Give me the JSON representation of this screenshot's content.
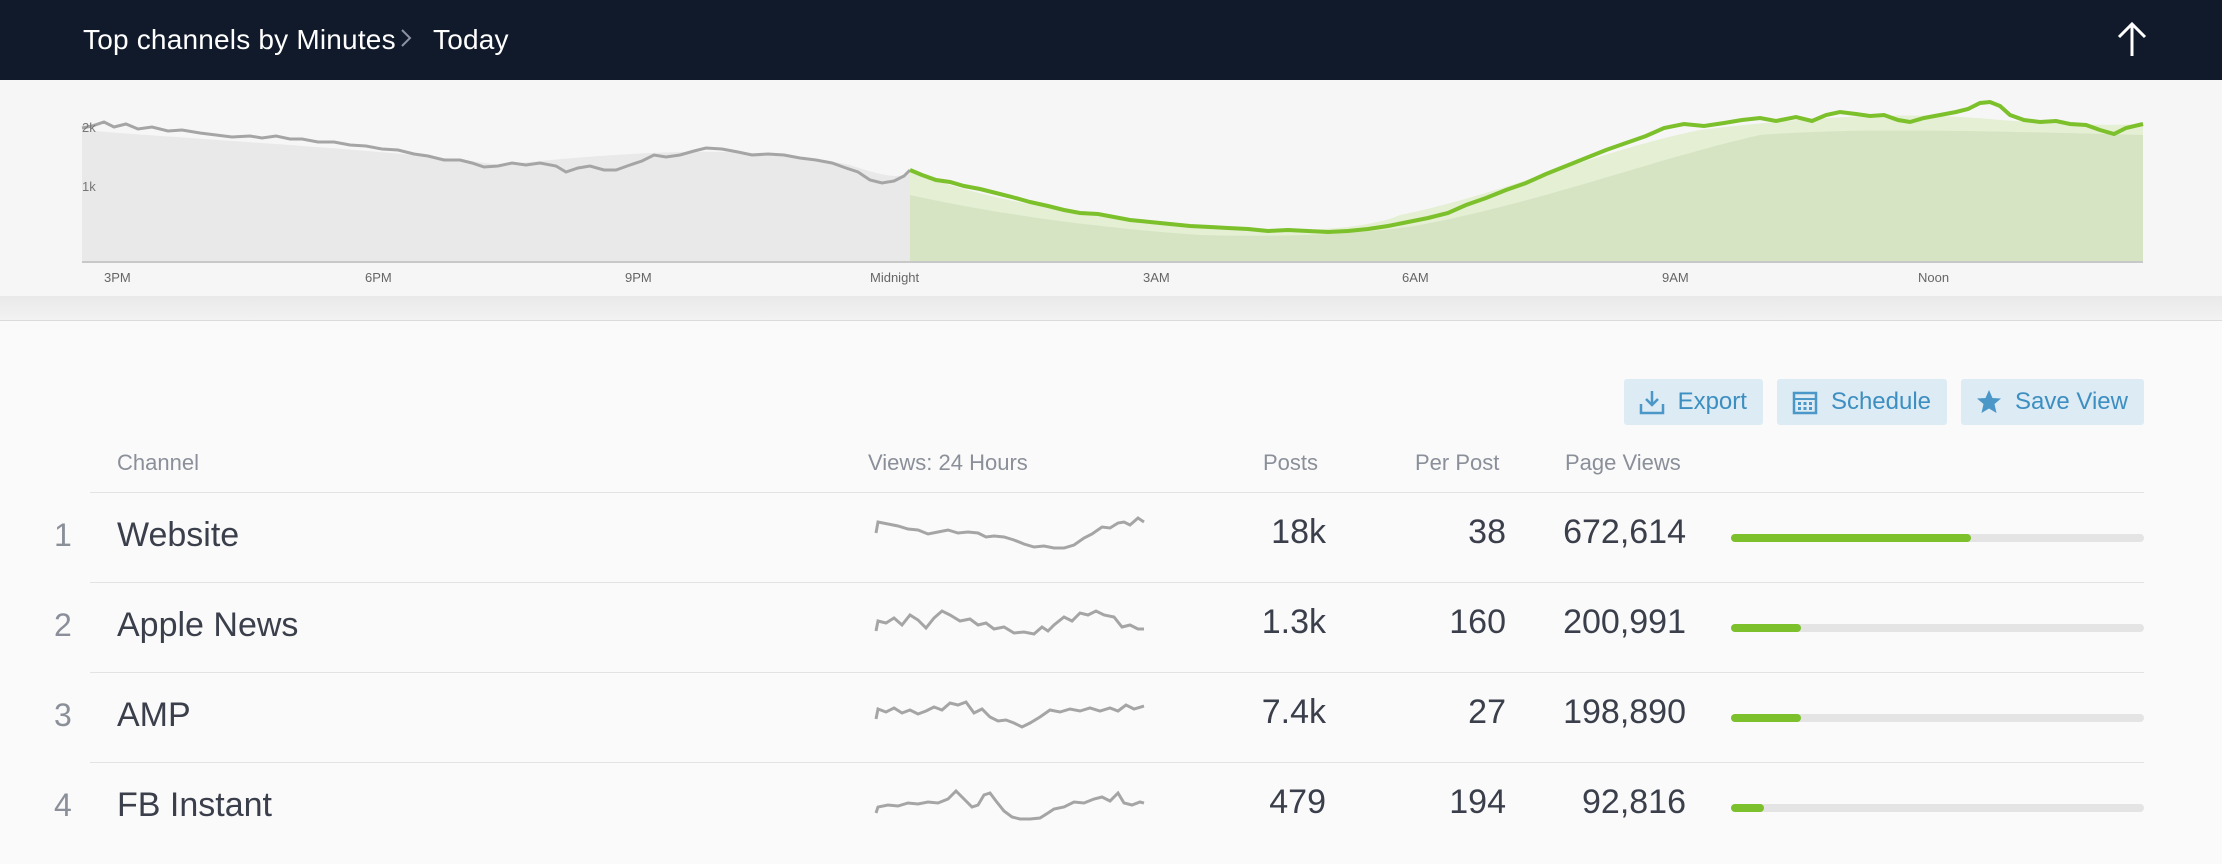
{
  "header": {
    "title": "Top channels by Minutes",
    "period": "Today"
  },
  "overview_chart": {
    "y_ticks": [
      "2k",
      "1k"
    ],
    "x_ticks": [
      "3PM",
      "6PM",
      "9PM",
      "Midnight",
      "3AM",
      "6AM",
      "9AM",
      "Noon"
    ],
    "colors": {
      "yesterday": "#a5a5a5",
      "today": "#7cc02b",
      "yesterday_fill": "#e8e8e8",
      "today_fill": "#d6e4c4"
    }
  },
  "actions": {
    "export": "Export",
    "schedule": "Schedule",
    "save_view": "Save View"
  },
  "table": {
    "headers": {
      "channel": "Channel",
      "views": "Views: 24 Hours",
      "posts": "Posts",
      "per_post": "Per Post",
      "page_views": "Page Views"
    },
    "rows": [
      {
        "rank": "1",
        "name": "Website",
        "posts": "18k",
        "per_post": "38",
        "page_views": "672,614",
        "share": 0.58
      },
      {
        "rank": "2",
        "name": "Apple News",
        "posts": "1.3k",
        "per_post": "160",
        "page_views": "200,991",
        "share": 0.17
      },
      {
        "rank": "3",
        "name": "AMP",
        "posts": "7.4k",
        "per_post": "27",
        "page_views": "198,890",
        "share": 0.17
      },
      {
        "rank": "4",
        "name": "FB Instant",
        "posts": "479",
        "per_post": "194",
        "page_views": "92,816",
        "share": 0.08
      }
    ]
  }
}
